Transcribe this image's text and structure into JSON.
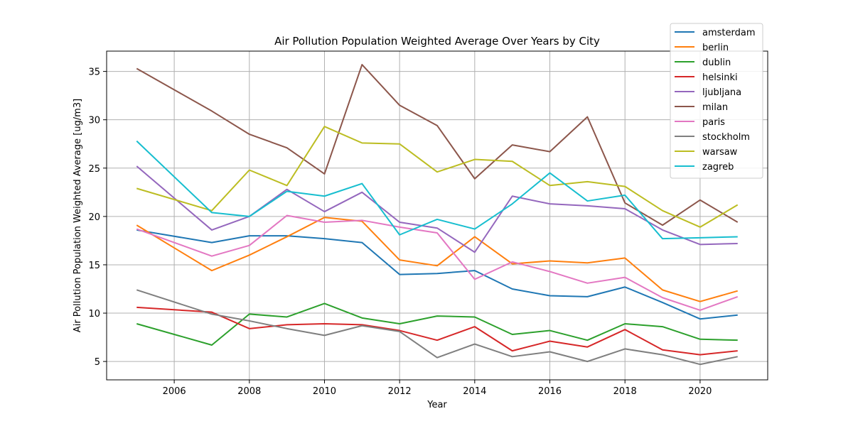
{
  "chart_data": {
    "type": "line",
    "title": "Air Pollution Population Weighted Average Over Years by City",
    "xlabel": "Year",
    "ylabel": "Air Pollution Population Weighted Average [ug/m3]",
    "xlim": [
      2004.2,
      2021.8
    ],
    "ylim": [
      3.1,
      37.1
    ],
    "xticks": [
      2006,
      2008,
      2010,
      2012,
      2014,
      2016,
      2018,
      2020
    ],
    "yticks": [
      5,
      10,
      15,
      20,
      25,
      30,
      35
    ],
    "grid": true,
    "legend_position": "top-right",
    "x": [
      2005,
      2007,
      2008,
      2009,
      2010,
      2011,
      2012,
      2013,
      2014,
      2015,
      2016,
      2017,
      2018,
      2019,
      2020,
      2021
    ],
    "series": [
      {
        "name": "amsterdam",
        "color": "#1f77b4",
        "values": [
          18.6,
          17.3,
          18.0,
          18.0,
          17.7,
          17.3,
          14.0,
          14.1,
          14.4,
          12.5,
          11.8,
          11.7,
          12.7,
          11.1,
          9.4,
          9.8
        ]
      },
      {
        "name": "berlin",
        "color": "#ff7f0e",
        "values": [
          19.1,
          14.4,
          16.0,
          17.9,
          19.9,
          19.5,
          15.5,
          14.9,
          17.9,
          15.1,
          15.4,
          15.2,
          15.7,
          12.4,
          11.2,
          12.3
        ]
      },
      {
        "name": "dublin",
        "color": "#2ca02c",
        "values": [
          8.9,
          6.7,
          9.9,
          9.6,
          11.0,
          9.5,
          8.9,
          9.7,
          9.6,
          7.8,
          8.2,
          7.2,
          8.9,
          8.6,
          7.3,
          7.2
        ]
      },
      {
        "name": "helsinki",
        "color": "#d62728",
        "values": [
          10.6,
          10.1,
          8.4,
          8.8,
          8.9,
          8.8,
          8.2,
          7.2,
          8.6,
          6.1,
          7.1,
          6.5,
          8.3,
          6.2,
          5.7,
          6.1
        ]
      },
      {
        "name": "ljubljana",
        "color": "#9467bd",
        "values": [
          25.2,
          18.6,
          20.0,
          22.8,
          20.5,
          22.5,
          19.4,
          18.8,
          16.3,
          22.1,
          21.3,
          21.1,
          20.8,
          18.6,
          17.1,
          17.2
        ]
      },
      {
        "name": "milan",
        "color": "#8c564b",
        "values": [
          35.3,
          30.9,
          28.5,
          27.1,
          24.4,
          35.7,
          31.5,
          29.4,
          23.9,
          27.4,
          26.7,
          30.3,
          21.4,
          19.1,
          21.7,
          19.4
        ]
      },
      {
        "name": "paris",
        "color": "#e377c2",
        "values": [
          18.7,
          15.9,
          17.0,
          20.1,
          19.4,
          19.6,
          18.9,
          18.3,
          13.5,
          15.3,
          14.3,
          13.1,
          13.7,
          11.6,
          10.3,
          11.7
        ]
      },
      {
        "name": "stockholm",
        "color": "#7f7f7f",
        "values": [
          12.4,
          9.9,
          9.2,
          8.4,
          7.7,
          8.7,
          8.1,
          5.4,
          6.8,
          5.5,
          6.0,
          5.0,
          6.3,
          5.7,
          4.7,
          5.5
        ]
      },
      {
        "name": "warsaw",
        "color": "#bcbd22",
        "values": [
          22.9,
          20.6,
          24.8,
          23.2,
          29.3,
          27.6,
          27.5,
          24.6,
          25.9,
          25.7,
          23.2,
          23.6,
          23.1,
          20.6,
          18.9,
          21.2
        ]
      },
      {
        "name": "zagreb",
        "color": "#17becf",
        "values": [
          27.8,
          20.4,
          20.0,
          22.6,
          22.1,
          23.4,
          18.1,
          19.7,
          18.7,
          21.3,
          24.5,
          21.6,
          22.2,
          17.7,
          17.8,
          17.9
        ]
      }
    ]
  }
}
